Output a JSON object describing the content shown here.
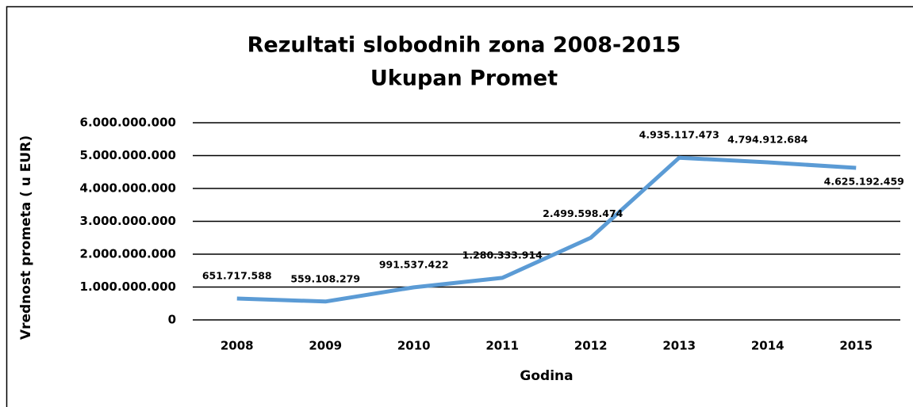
{
  "chart_data": {
    "type": "line",
    "title": "Rezultati slobodnih zona 2008-2015",
    "subtitle": "Ukupan Promet",
    "x_label": "Godina",
    "y_label": "Vrednost prometa ( u EUR)",
    "categories": [
      "2008",
      "2009",
      "2010",
      "2011",
      "2012",
      "2013",
      "2014",
      "2015"
    ],
    "series": [
      {
        "name": "Ukupan Promet",
        "color": "#5b9bd5",
        "values": [
          651717588,
          559108279,
          991537422,
          1280333914,
          2499598474,
          4935117473,
          4794912684,
          4625192459
        ],
        "value_labels": [
          "651.717.588",
          "559.108.279",
          "991.537.422",
          "1.280.333.914",
          "2.499.598.474",
          "4.935.117.473",
          "4.794.912.684",
          "4.625.192.459"
        ]
      }
    ],
    "ylim": [
      0,
      6000000000
    ],
    "yticks": [
      0,
      {
        "value": 1000000000,
        "label": "1.000.000.000"
      },
      {
        "value": 2000000000,
        "label": "2.000.000.000"
      },
      {
        "value": 3000000000,
        "label": "3.000.000.000"
      },
      {
        "value": 4000000000,
        "label": "4.000.000.000"
      },
      {
        "value": 5000000000,
        "label": "5.000.000.000"
      },
      {
        "value": 6000000000,
        "label": "6.000.000.000"
      }
    ],
    "grid": true
  }
}
